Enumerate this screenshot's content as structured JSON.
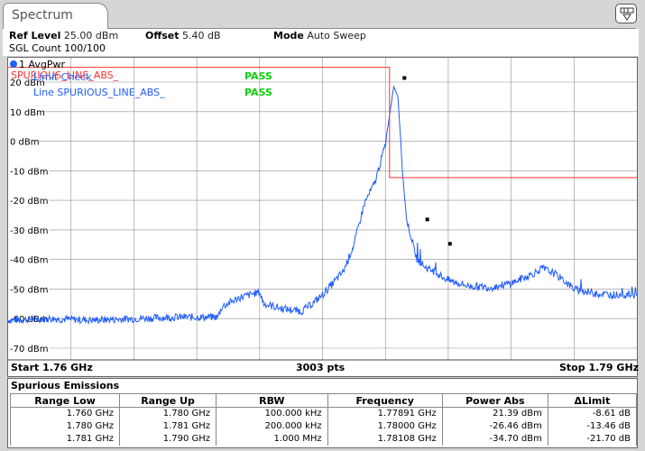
{
  "tab": {
    "label": "Spectrum"
  },
  "header": {
    "ref_level_label": "Ref Level",
    "ref_level_value": "25.00 dBm",
    "offset_label": "Offset",
    "offset_value": "5.40 dB",
    "mode_label": "Mode",
    "mode_value": "Auto Sweep",
    "sgl_count": "SGL Count 100/100"
  },
  "diagram": {
    "trace_label": "1 AvgPwr",
    "trace_label_color": "#2060ff",
    "limit_line_name": "SPURIOUS_LINE_ABS_",
    "limit_check_label": "Limit Check",
    "limit_check_result": "PASS",
    "line_label": "Line  SPURIOUS_LINE_ABS_",
    "line_result": "PASS",
    "start_label": "Start 1.76 GHz",
    "pts_label": "3003 pts",
    "stop_label": "Stop 1.79 GHz",
    "colors": {
      "trace": "#1f5cff",
      "limit": "#ff3030",
      "pass": "#10cc10",
      "grid": "#909090"
    }
  },
  "chart_data": {
    "type": "line",
    "x_range_ghz": [
      1.76,
      1.79
    ],
    "ylim": [
      -80,
      25
    ],
    "yticks": [
      "20 dBm",
      "10 dBm",
      "0 dBm",
      "-10 dBm",
      "-20 dBm",
      "-30 dBm",
      "-40 dBm",
      "-50 dBm",
      "-60 dBm",
      "-70 dBm"
    ],
    "ytick_values": [
      20,
      10,
      0,
      -10,
      -20,
      -30,
      -40,
      -50,
      -60,
      -70
    ],
    "grid": true,
    "series": [
      {
        "x": [
          1.76,
          1.762,
          1.764,
          1.766,
          1.768,
          1.77,
          1.7702,
          1.771,
          1.772,
          1.7722,
          1.773,
          1.774,
          1.7745,
          1.775,
          1.776,
          1.7765,
          1.777,
          1.7775,
          1.778,
          1.7784,
          1.7786,
          1.7788,
          1.779,
          1.7795,
          1.78,
          1.7805,
          1.781,
          1.7815,
          1.782,
          1.783,
          1.784,
          1.785,
          1.7855,
          1.786,
          1.7865,
          1.787,
          1.788,
          1.789,
          1.79
        ],
        "y": [
          -60.5,
          -60.0,
          -60.5,
          -60.0,
          -59.5,
          -59.5,
          -56.0,
          -53.0,
          -51.0,
          -55.0,
          -56.5,
          -57.5,
          -55.0,
          -52.0,
          -44.0,
          -35.0,
          -21.0,
          -14.0,
          -1.0,
          18.5,
          15.0,
          -8.0,
          -26.0,
          -40.0,
          -43.0,
          -45.0,
          -47.0,
          -48.0,
          -49.0,
          -49.5,
          -48.0,
          -45.0,
          -43.0,
          -44.5,
          -47.0,
          -50.0,
          -51.5,
          -52.0,
          -52.0
        ]
      }
    ],
    "limit_line": {
      "x": [
        1.76,
        1.7782,
        1.7782,
        1.79
      ],
      "y": [
        25,
        25,
        -12.3,
        -12.3
      ]
    },
    "markers": [
      {
        "x": 1.77891,
        "y": 21.39
      },
      {
        "x": 1.78,
        "y": -26.46
      },
      {
        "x": 1.78108,
        "y": -34.7
      }
    ]
  },
  "spurious": {
    "title": "Spurious Emissions",
    "columns": [
      "Range Low",
      "Range Up",
      "RBW",
      "Frequency",
      "Power Abs",
      "ΔLimit"
    ],
    "rows": [
      [
        "1.760 GHz",
        "1.780 GHz",
        "100.000 kHz",
        "1.77891 GHz",
        "21.39 dBm",
        "-8.61 dB"
      ],
      [
        "1.780 GHz",
        "1.781 GHz",
        "200.000 kHz",
        "1.78000 GHz",
        "-26.46 dBm",
        "-13.46 dB"
      ],
      [
        "1.781 GHz",
        "1.790 GHz",
        "1.000 MHz",
        "1.78108 GHz",
        "-34.70 dBm",
        "-21.70 dB"
      ]
    ]
  }
}
